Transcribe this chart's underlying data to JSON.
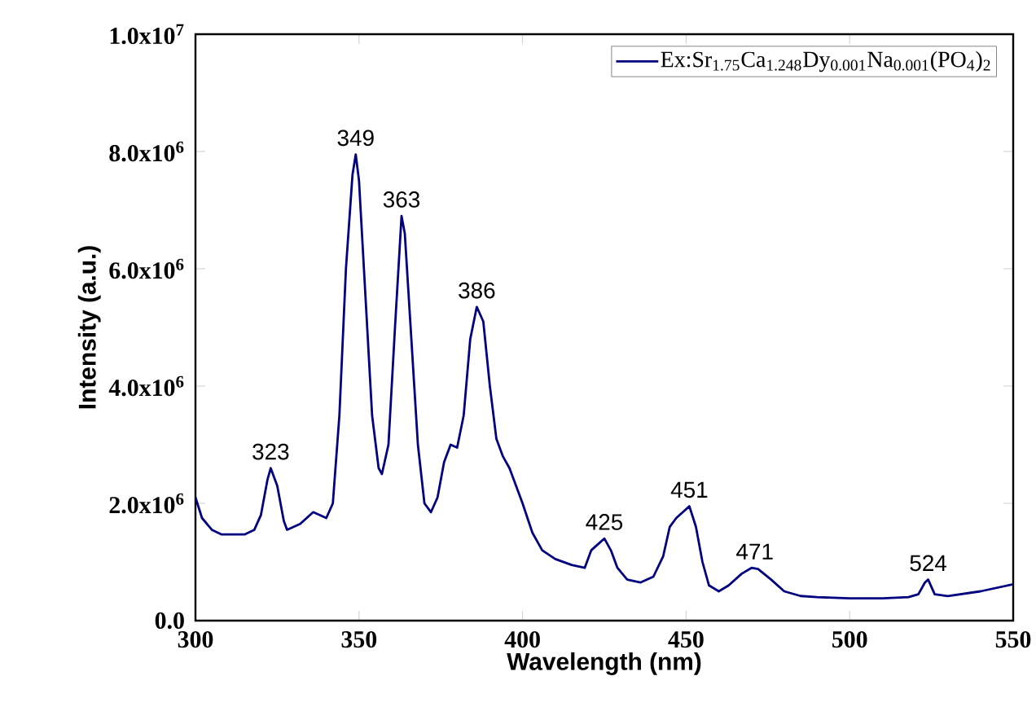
{
  "chart_data": {
    "type": "line",
    "xlabel": "Wavelength (nm)",
    "ylabel": "Intensity (a.u.)",
    "x": [
      300,
      302,
      305,
      308,
      315,
      318,
      320,
      322,
      323,
      325,
      327,
      328,
      332,
      336,
      338,
      340,
      342,
      344,
      346,
      348,
      349,
      350,
      352,
      354,
      356,
      357,
      359,
      361,
      363,
      364,
      366,
      368,
      370,
      372,
      374,
      376,
      378,
      380,
      382,
      384,
      386,
      388,
      390,
      392,
      394,
      396,
      400,
      403,
      406,
      410,
      415,
      419,
      421,
      423,
      425,
      427,
      429,
      432,
      436,
      440,
      443,
      445,
      447,
      449,
      451,
      453,
      455,
      457,
      460,
      463,
      467,
      470,
      472,
      476,
      480,
      485,
      490,
      500,
      510,
      518,
      521,
      523,
      524,
      526,
      530,
      540,
      550
    ],
    "series": [
      {
        "name": "Ex:Sr$_{1.75}$Ca$_{1.248}$Dy$_{0.001}$Na$_{0.001}$(PO$_{4}$)$_{2}$",
        "color": "#000080",
        "values": [
          2100000,
          1750000,
          1550000,
          1470000,
          1470000,
          1550000,
          1800000,
          2400000,
          2600000,
          2300000,
          1700000,
          1550000,
          1650000,
          1850000,
          1800000,
          1750000,
          2000000,
          3500000,
          6000000,
          7600000,
          7950000,
          7500000,
          5500000,
          3500000,
          2600000,
          2500000,
          3000000,
          5000000,
          6900000,
          6600000,
          4800000,
          3000000,
          2000000,
          1850000,
          2100000,
          2700000,
          3000000,
          2950000,
          3500000,
          4800000,
          5350000,
          5100000,
          4000000,
          3100000,
          2800000,
          2600000,
          2000000,
          1500000,
          1200000,
          1050000,
          950000,
          900000,
          1200000,
          1300000,
          1400000,
          1200000,
          900000,
          700000,
          650000,
          750000,
          1100000,
          1600000,
          1750000,
          1850000,
          1950000,
          1600000,
          1000000,
          600000,
          500000,
          600000,
          800000,
          900000,
          880000,
          700000,
          500000,
          420000,
          400000,
          380000,
          380000,
          400000,
          450000,
          650000,
          700000,
          450000,
          420000,
          500000,
          620000
        ]
      }
    ],
    "xlim": [
      300,
      550
    ],
    "xticks": [
      300,
      350,
      400,
      450,
      500,
      550
    ],
    "ylim": [
      0,
      10000000
    ],
    "yticks": [
      {
        "value": 0,
        "label": "0.0"
      },
      {
        "value": 2000000,
        "label": "2.0x10$^{6}$"
      },
      {
        "value": 4000000,
        "label": "4.0x10$^{6}$"
      },
      {
        "value": 6000000,
        "label": "6.0x10$^{6}$"
      },
      {
        "value": 8000000,
        "label": "8.0x10$^{6}$"
      },
      {
        "value": 10000000,
        "label": "1.0x10$^{7}$"
      }
    ],
    "annotations": [
      {
        "text": "323",
        "x": 323,
        "y": 2600000
      },
      {
        "text": "349",
        "x": 349,
        "y": 7950000
      },
      {
        "text": "363",
        "x": 363,
        "y": 6900000
      },
      {
        "text": "386",
        "x": 386,
        "y": 5350000
      },
      {
        "text": "425",
        "x": 425,
        "y": 1400000
      },
      {
        "text": "451",
        "x": 451,
        "y": 1950000
      },
      {
        "text": "471",
        "x": 471,
        "y": 900000
      },
      {
        "text": "524",
        "x": 524,
        "y": 700000
      }
    ],
    "grid": false,
    "marker": "none",
    "line_style": "solid"
  }
}
